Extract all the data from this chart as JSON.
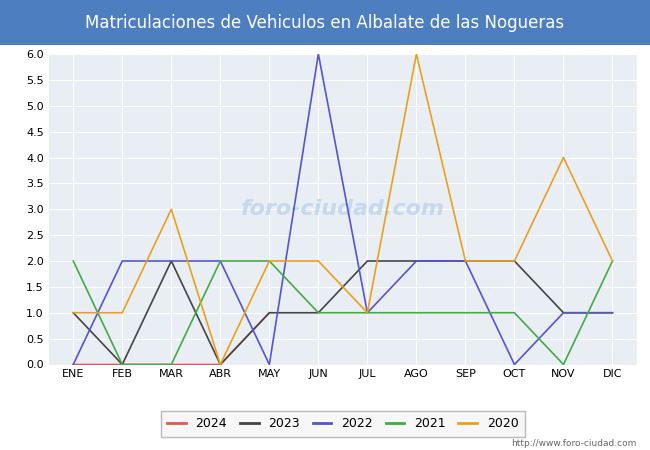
{
  "title": "Matriculaciones de Vehiculos en Albalate de las Nogueras",
  "title_bg_color": "#4d7ebf",
  "title_text_color": "#ffffff",
  "months": [
    "ENE",
    "FEB",
    "MAR",
    "ABR",
    "MAY",
    "JUN",
    "JUL",
    "AGO",
    "SEP",
    "OCT",
    "NOV",
    "DIC"
  ],
  "ylim": [
    0.0,
    6.0
  ],
  "yticks": [
    0.0,
    0.5,
    1.0,
    1.5,
    2.0,
    2.5,
    3.0,
    3.5,
    4.0,
    4.5,
    5.0,
    5.5,
    6.0
  ],
  "series": {
    "2024": {
      "color": "#e05c50",
      "data": [
        0,
        0,
        0,
        0,
        1,
        null,
        null,
        null,
        null,
        null,
        null,
        null
      ]
    },
    "2023": {
      "color": "#444444",
      "data": [
        1,
        0,
        2,
        0,
        1,
        1,
        2,
        2,
        2,
        2,
        1,
        1
      ]
    },
    "2022": {
      "color": "#5555cc",
      "data": [
        0,
        2,
        2,
        2,
        0,
        6,
        1,
        2,
        2,
        0,
        1,
        1
      ]
    },
    "2021": {
      "color": "#44aa44",
      "data": [
        2,
        0,
        0,
        2,
        2,
        1,
        1,
        1,
        1,
        1,
        0,
        2
      ]
    },
    "2020": {
      "color": "#e8a020",
      "data": [
        1,
        1,
        3,
        0,
        2,
        2,
        1,
        6,
        2,
        2,
        4,
        2
      ]
    }
  },
  "watermark": "foro-ciudad.com",
  "watermark_color": "#c5d8ee",
  "url_text": "http://www.foro-ciudad.com",
  "plot_bg_color": "#e8eef4",
  "fig_bg_color": "#ffffff",
  "grid_color": "#ffffff",
  "legend_order": [
    "2024",
    "2023",
    "2022",
    "2021",
    "2020"
  ]
}
